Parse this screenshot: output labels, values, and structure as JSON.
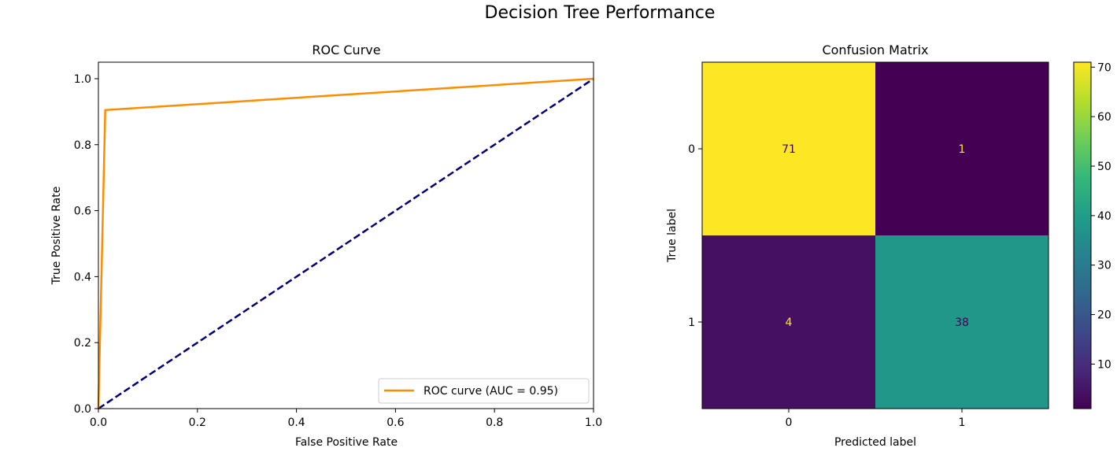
{
  "suptitle": "Decision Tree Performance",
  "chart_data": [
    {
      "type": "line",
      "title": "ROC Curve",
      "xlabel": "False Positive Rate",
      "ylabel": "True Positive Rate",
      "xlim": [
        0.0,
        1.0
      ],
      "ylim": [
        0.0,
        1.05
      ],
      "xticks": [
        0.0,
        0.2,
        0.4,
        0.6,
        0.8,
        1.0
      ],
      "xtick_labels": [
        "0.0",
        "0.2",
        "0.4",
        "0.6",
        "0.8",
        "1.0"
      ],
      "yticks": [
        0.0,
        0.2,
        0.4,
        0.6,
        0.8,
        1.0
      ],
      "ytick_labels": [
        "0.0",
        "0.2",
        "0.4",
        "0.6",
        "0.8",
        "1.0"
      ],
      "grid": false,
      "legend_position": "lower-right",
      "series": [
        {
          "name": "ROC curve (AUC = 0.95)",
          "color": "#ff8c00",
          "style": "solid",
          "x": [
            0.0,
            0.0139,
            1.0
          ],
          "y": [
            0.0,
            0.9048,
            1.0
          ]
        },
        {
          "color": "#000080",
          "style": "dashed",
          "x": [
            0.0,
            1.0
          ],
          "y": [
            0.0,
            1.0
          ]
        }
      ]
    },
    {
      "type": "heatmap",
      "title": "Confusion Matrix",
      "xlabel": "Predicted label",
      "ylabel": "True label",
      "x_categories": [
        "0",
        "1"
      ],
      "y_categories": [
        "0",
        "1"
      ],
      "values": [
        [
          71,
          1
        ],
        [
          4,
          38
        ]
      ],
      "colormap": "viridis",
      "colorbar": {
        "min": 1,
        "max": 71,
        "ticks": [
          10,
          20,
          30,
          40,
          50,
          60,
          70
        ],
        "tick_labels": [
          "10",
          "20",
          "30",
          "40",
          "50",
          "60",
          "70"
        ]
      }
    }
  ]
}
